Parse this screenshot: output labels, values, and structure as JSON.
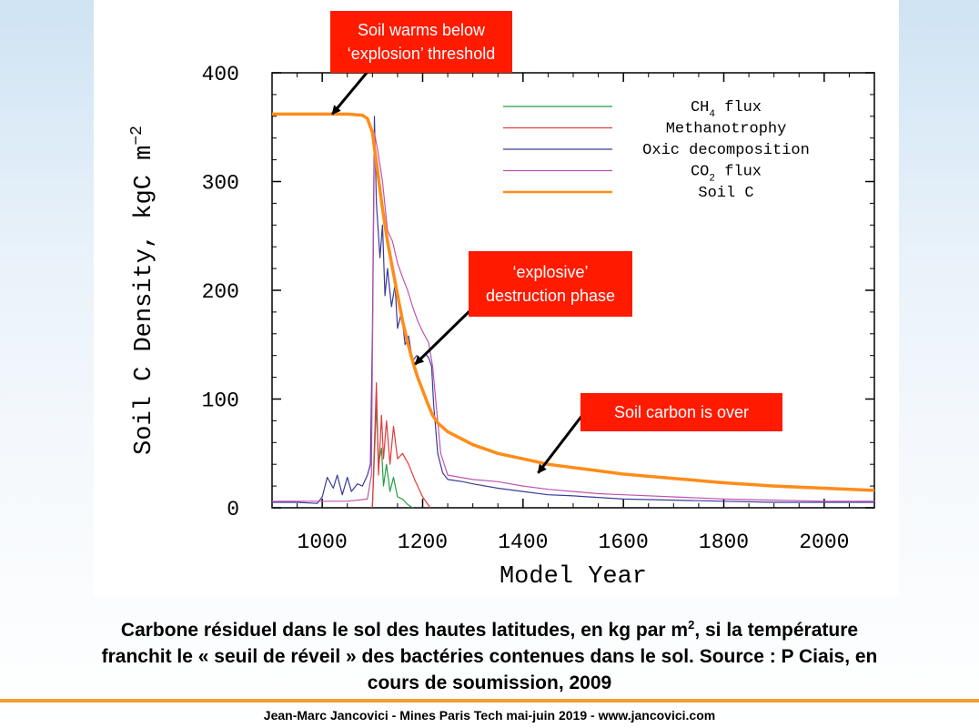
{
  "chart_data": {
    "type": "line",
    "xlabel": "Model Year",
    "ylabel": "Soil C Density, kgC m",
    "ylabel_sup": "−2",
    "xlim": [
      900,
      2100
    ],
    "ylim": [
      0,
      400
    ],
    "x_ticks": [
      1000,
      1200,
      1400,
      1600,
      1800,
      2000
    ],
    "y_ticks": [
      0,
      100,
      200,
      300,
      400
    ],
    "x_tick_labels": [
      "1000",
      "1200",
      "1400",
      "1600",
      "1800",
      "2000"
    ],
    "y_tick_labels": [
      "0",
      "100",
      "200",
      "300",
      "400"
    ],
    "legend_position": "top-right",
    "series": [
      {
        "name": "CH4 flux",
        "name_main": "CH",
        "name_sub": "4",
        "name_rest": " flux",
        "color": "#22a040",
        "points": [
          [
            1100,
            0
          ],
          [
            1108,
            95
          ],
          [
            1112,
            40
          ],
          [
            1118,
            55
          ],
          [
            1122,
            20
          ],
          [
            1128,
            40
          ],
          [
            1135,
            15
          ],
          [
            1142,
            28
          ],
          [
            1150,
            10
          ],
          [
            1160,
            8
          ],
          [
            1170,
            3
          ],
          [
            1180,
            0
          ]
        ]
      },
      {
        "name": "Methanotrophy",
        "color": "#e83838",
        "points": [
          [
            1100,
            0
          ],
          [
            1108,
            115
          ],
          [
            1112,
            30
          ],
          [
            1118,
            85
          ],
          [
            1122,
            45
          ],
          [
            1128,
            80
          ],
          [
            1135,
            40
          ],
          [
            1142,
            75
          ],
          [
            1150,
            45
          ],
          [
            1160,
            50
          ],
          [
            1172,
            40
          ],
          [
            1185,
            25
          ],
          [
            1200,
            10
          ],
          [
            1215,
            0
          ]
        ]
      },
      {
        "name": "Oxic decomposition",
        "color": "#3a3a9a",
        "points": [
          [
            900,
            5
          ],
          [
            950,
            5
          ],
          [
            990,
            4
          ],
          [
            1000,
            10
          ],
          [
            1010,
            28
          ],
          [
            1022,
            18
          ],
          [
            1030,
            30
          ],
          [
            1040,
            12
          ],
          [
            1050,
            28
          ],
          [
            1058,
            15
          ],
          [
            1070,
            22
          ],
          [
            1080,
            20
          ],
          [
            1090,
            30
          ],
          [
            1096,
            40
          ],
          [
            1100,
            160
          ],
          [
            1104,
            360
          ],
          [
            1108,
            280
          ],
          [
            1115,
            230
          ],
          [
            1120,
            260
          ],
          [
            1125,
            195
          ],
          [
            1130,
            220
          ],
          [
            1138,
            185
          ],
          [
            1145,
            205
          ],
          [
            1150,
            165
          ],
          [
            1158,
            180
          ],
          [
            1165,
            150
          ],
          [
            1172,
            158
          ],
          [
            1180,
            135
          ],
          [
            1188,
            140
          ],
          [
            1195,
            135
          ],
          [
            1205,
            142
          ],
          [
            1212,
            138
          ],
          [
            1218,
            130
          ],
          [
            1222,
            95
          ],
          [
            1230,
            50
          ],
          [
            1240,
            32
          ],
          [
            1250,
            26
          ],
          [
            1280,
            24
          ],
          [
            1300,
            22
          ],
          [
            1350,
            18
          ],
          [
            1400,
            15
          ],
          [
            1450,
            12
          ],
          [
            1500,
            11
          ],
          [
            1600,
            8
          ],
          [
            1700,
            7
          ],
          [
            1800,
            6
          ],
          [
            1900,
            5
          ],
          [
            2000,
            5
          ],
          [
            2100,
            5
          ]
        ]
      },
      {
        "name": "CO2 flux",
        "name_main": "CO",
        "name_sub": "2",
        "name_rest": " flux",
        "color": "#c054b0",
        "points": [
          [
            900,
            6
          ],
          [
            990,
            6
          ],
          [
            1000,
            6
          ],
          [
            1050,
            6
          ],
          [
            1090,
            8
          ],
          [
            1098,
            30
          ],
          [
            1104,
            345
          ],
          [
            1110,
            330
          ],
          [
            1120,
            300
          ],
          [
            1130,
            255
          ],
          [
            1140,
            245
          ],
          [
            1150,
            225
          ],
          [
            1160,
            212
          ],
          [
            1170,
            200
          ],
          [
            1180,
            185
          ],
          [
            1190,
            172
          ],
          [
            1200,
            162
          ],
          [
            1212,
            152
          ],
          [
            1220,
            130
          ],
          [
            1228,
            90
          ],
          [
            1236,
            50
          ],
          [
            1250,
            30
          ],
          [
            1300,
            26
          ],
          [
            1350,
            24
          ],
          [
            1400,
            20
          ],
          [
            1450,
            17
          ],
          [
            1500,
            15
          ],
          [
            1550,
            13
          ],
          [
            1600,
            12
          ],
          [
            1700,
            10
          ],
          [
            1800,
            8
          ],
          [
            1900,
            7
          ],
          [
            2000,
            6
          ],
          [
            2100,
            6
          ]
        ]
      },
      {
        "name": "Soil C",
        "color": "#ff8c1a",
        "points": [
          [
            900,
            362
          ],
          [
            1050,
            362
          ],
          [
            1080,
            361
          ],
          [
            1090,
            358
          ],
          [
            1100,
            345
          ],
          [
            1110,
            310
          ],
          [
            1120,
            275
          ],
          [
            1130,
            245
          ],
          [
            1140,
            220
          ],
          [
            1150,
            196
          ],
          [
            1160,
            172
          ],
          [
            1170,
            152
          ],
          [
            1180,
            135
          ],
          [
            1190,
            120
          ],
          [
            1200,
            108
          ],
          [
            1210,
            96
          ],
          [
            1220,
            85
          ],
          [
            1230,
            78
          ],
          [
            1250,
            70
          ],
          [
            1300,
            58
          ],
          [
            1350,
            50
          ],
          [
            1400,
            45
          ],
          [
            1450,
            40
          ],
          [
            1500,
            37
          ],
          [
            1550,
            34
          ],
          [
            1600,
            31
          ],
          [
            1700,
            27
          ],
          [
            1800,
            23
          ],
          [
            1900,
            20
          ],
          [
            2000,
            18
          ],
          [
            2100,
            16
          ]
        ]
      }
    ]
  },
  "annotations": [
    {
      "label": "Soil warms below\n‘explosion’ threshold",
      "target": [
        1020,
        362
      ]
    },
    {
      "label": "‘explosive’\ndestruction phase",
      "target": [
        1185,
        132
      ]
    },
    {
      "label": "Soil carbon is over",
      "target": [
        1430,
        32
      ]
    }
  ],
  "caption": {
    "line1_before": "Carbone résiduel dans le sol des hautes latitudes, en kg par m",
    "line1_sup": "2",
    "line1_after": ", si la température",
    "line2": "franchit le « seuil de réveil » des bactéries contenues dans le sol. Source : P Ciais, en",
    "line3": "cours de soumission, 2009"
  },
  "footer": "Jean-Marc Jancovici - Mines Paris Tech mai-juin 2019 - www.jancovici.com"
}
